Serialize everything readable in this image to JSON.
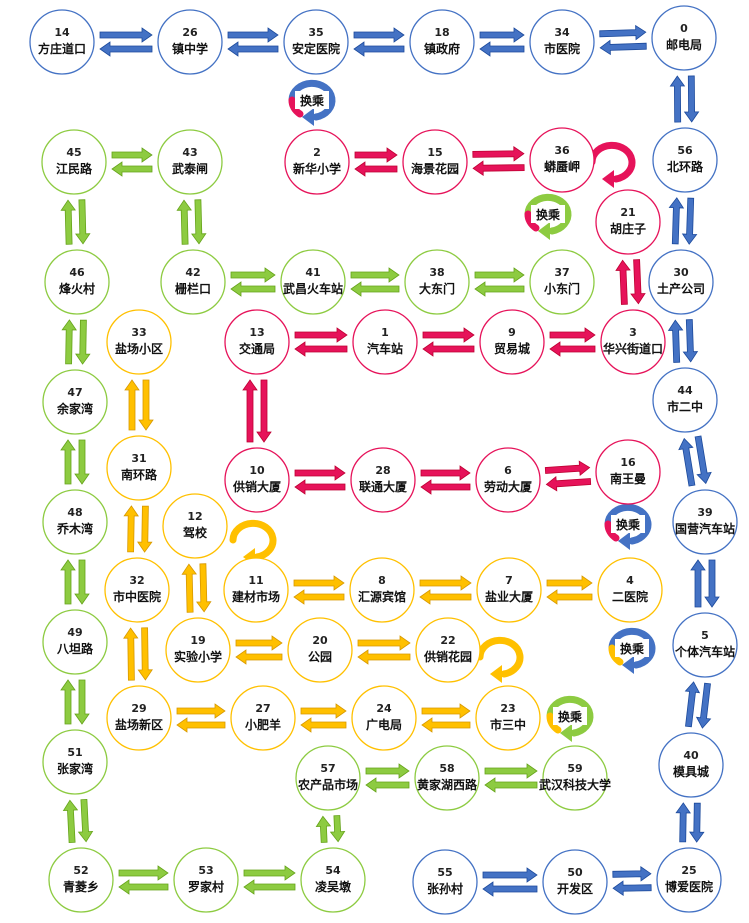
{
  "lines": {
    "blue": {
      "color": "#4472C4"
    },
    "red": {
      "color": "#E6135A"
    },
    "green": {
      "color": "#8DCB41"
    },
    "yellow": {
      "color": "#FFC000"
    }
  },
  "stations": [
    {
      "id": "s14",
      "num": "14",
      "name": "方庄道口",
      "line": "blue"
    },
    {
      "id": "s26",
      "num": "26",
      "name": "镇中学",
      "line": "blue"
    },
    {
      "id": "s35",
      "num": "35",
      "name": "安定医院",
      "line": "blue"
    },
    {
      "id": "s18",
      "num": "18",
      "name": "镇政府",
      "line": "blue"
    },
    {
      "id": "s34",
      "num": "34",
      "name": "市医院",
      "line": "blue"
    },
    {
      "id": "s0",
      "num": "0",
      "name": "邮电局",
      "line": "blue"
    },
    {
      "id": "s56",
      "num": "56",
      "name": "北环路",
      "line": "blue"
    },
    {
      "id": "s30",
      "num": "30",
      "name": "土产公司",
      "line": "blue"
    },
    {
      "id": "s44",
      "num": "44",
      "name": "市二中",
      "line": "blue"
    },
    {
      "id": "s39",
      "num": "39",
      "name": "国营汽车站",
      "line": "blue"
    },
    {
      "id": "s5",
      "num": "5",
      "name": "个体汽车站",
      "line": "blue"
    },
    {
      "id": "s40",
      "num": "40",
      "name": "模具城",
      "line": "blue"
    },
    {
      "id": "s25",
      "num": "25",
      "name": "博爱医院",
      "line": "blue"
    },
    {
      "id": "s50",
      "num": "50",
      "name": "开发区",
      "line": "blue"
    },
    {
      "id": "s55",
      "num": "55",
      "name": "张孙村",
      "line": "blue"
    },
    {
      "id": "s2",
      "num": "2",
      "name": "新华小学",
      "line": "red"
    },
    {
      "id": "s15",
      "num": "15",
      "name": "海景花园",
      "line": "red"
    },
    {
      "id": "s36",
      "num": "36",
      "name": "蟒蜃岬",
      "line": "red"
    },
    {
      "id": "s21",
      "num": "21",
      "name": "胡庄子",
      "line": "red"
    },
    {
      "id": "s3",
      "num": "3",
      "name": "华兴街道口",
      "line": "red"
    },
    {
      "id": "s9",
      "num": "9",
      "name": "贸易城",
      "line": "red"
    },
    {
      "id": "s1",
      "num": "1",
      "name": "汽车站",
      "line": "red"
    },
    {
      "id": "s13",
      "num": "13",
      "name": "交通局",
      "line": "red"
    },
    {
      "id": "s10",
      "num": "10",
      "name": "供销大厦",
      "line": "red"
    },
    {
      "id": "s28",
      "num": "28",
      "name": "联通大厦",
      "line": "red"
    },
    {
      "id": "s6",
      "num": "6",
      "name": "劳动大厦",
      "line": "red"
    },
    {
      "id": "s16",
      "num": "16",
      "name": "南王曼",
      "line": "red"
    },
    {
      "id": "s45",
      "num": "45",
      "name": "江民路",
      "line": "green"
    },
    {
      "id": "s43",
      "num": "43",
      "name": "武泰闸",
      "line": "green"
    },
    {
      "id": "s42",
      "num": "42",
      "name": "栅栏口",
      "line": "green"
    },
    {
      "id": "s41",
      "num": "41",
      "name": "武昌火车站",
      "line": "green"
    },
    {
      "id": "s38",
      "num": "38",
      "name": "大东门",
      "line": "green"
    },
    {
      "id": "s37",
      "num": "37",
      "name": "小东门",
      "line": "green"
    },
    {
      "id": "s46",
      "num": "46",
      "name": "烽火村",
      "line": "green"
    },
    {
      "id": "s47",
      "num": "47",
      "name": "余家湾",
      "line": "green"
    },
    {
      "id": "s48",
      "num": "48",
      "name": "乔木湾",
      "line": "green"
    },
    {
      "id": "s49",
      "num": "49",
      "name": "八坦路",
      "line": "green"
    },
    {
      "id": "s51",
      "num": "51",
      "name": "张家湾",
      "line": "green"
    },
    {
      "id": "s52",
      "num": "52",
      "name": "青菱乡",
      "line": "green"
    },
    {
      "id": "s53",
      "num": "53",
      "name": "罗家村",
      "line": "green"
    },
    {
      "id": "s54",
      "num": "54",
      "name": "凌吴墩",
      "line": "green"
    },
    {
      "id": "s57",
      "num": "57",
      "name": "农产品市场",
      "line": "green"
    },
    {
      "id": "s58",
      "num": "58",
      "name": "黄家湖西路",
      "line": "green"
    },
    {
      "id": "s59",
      "num": "59",
      "name": "武汉科技大学",
      "line": "green"
    },
    {
      "id": "s33",
      "num": "33",
      "name": "盐场小区",
      "line": "yellow"
    },
    {
      "id": "s31",
      "num": "31",
      "name": "南环路",
      "line": "yellow"
    },
    {
      "id": "s32",
      "num": "32",
      "name": "市中医院",
      "line": "yellow"
    },
    {
      "id": "s29",
      "num": "29",
      "name": "盐场新区",
      "line": "yellow"
    },
    {
      "id": "s12",
      "num": "12",
      "name": "驾校",
      "line": "yellow"
    },
    {
      "id": "s11",
      "num": "11",
      "name": "建材市场",
      "line": "yellow"
    },
    {
      "id": "s8",
      "num": "8",
      "name": "汇源宾馆",
      "line": "yellow"
    },
    {
      "id": "s7",
      "num": "7",
      "name": "盐业大厦",
      "line": "yellow"
    },
    {
      "id": "s4",
      "num": "4",
      "name": "二医院",
      "line": "yellow"
    },
    {
      "id": "s19",
      "num": "19",
      "name": "实验小学",
      "line": "yellow"
    },
    {
      "id": "s20",
      "num": "20",
      "name": "公园",
      "line": "yellow"
    },
    {
      "id": "s22",
      "num": "22",
      "name": "供销花园",
      "line": "yellow"
    },
    {
      "id": "s27",
      "num": "27",
      "name": "小肥羊",
      "line": "yellow"
    },
    {
      "id": "s24",
      "num": "24",
      "name": "广电局",
      "line": "yellow"
    },
    {
      "id": "s23",
      "num": "23",
      "name": "市三中",
      "line": "yellow"
    }
  ],
  "connections": [
    {
      "a": "s14",
      "b": "s26"
    },
    {
      "a": "s26",
      "b": "s35"
    },
    {
      "a": "s35",
      "b": "s18"
    },
    {
      "a": "s18",
      "b": "s34"
    },
    {
      "a": "s34",
      "b": "s0"
    },
    {
      "a": "s0",
      "b": "s56"
    },
    {
      "a": "s56",
      "b": "s30"
    },
    {
      "a": "s30",
      "b": "s44"
    },
    {
      "a": "s44",
      "b": "s39"
    },
    {
      "a": "s39",
      "b": "s5"
    },
    {
      "a": "s5",
      "b": "s40"
    },
    {
      "a": "s40",
      "b": "s25"
    },
    {
      "a": "s25",
      "b": "s50"
    },
    {
      "a": "s50",
      "b": "s55"
    },
    {
      "a": "s2",
      "b": "s15"
    },
    {
      "a": "s15",
      "b": "s36"
    },
    {
      "a": "s21",
      "b": "s3"
    },
    {
      "a": "s3",
      "b": "s9"
    },
    {
      "a": "s9",
      "b": "s1"
    },
    {
      "a": "s1",
      "b": "s13"
    },
    {
      "a": "s13",
      "b": "s10"
    },
    {
      "a": "s10",
      "b": "s28"
    },
    {
      "a": "s28",
      "b": "s6"
    },
    {
      "a": "s6",
      "b": "s16"
    },
    {
      "a": "s45",
      "b": "s43"
    },
    {
      "a": "s43",
      "b": "s42"
    },
    {
      "a": "s42",
      "b": "s41"
    },
    {
      "a": "s41",
      "b": "s38"
    },
    {
      "a": "s38",
      "b": "s37"
    },
    {
      "a": "s45",
      "b": "s46"
    },
    {
      "a": "s46",
      "b": "s47"
    },
    {
      "a": "s47",
      "b": "s48"
    },
    {
      "a": "s48",
      "b": "s49"
    },
    {
      "a": "s49",
      "b": "s51"
    },
    {
      "a": "s51",
      "b": "s52"
    },
    {
      "a": "s52",
      "b": "s53"
    },
    {
      "a": "s53",
      "b": "s54"
    },
    {
      "a": "s54",
      "b": "s57"
    },
    {
      "a": "s57",
      "b": "s58"
    },
    {
      "a": "s58",
      "b": "s59"
    },
    {
      "a": "s33",
      "b": "s31"
    },
    {
      "a": "s31",
      "b": "s32"
    },
    {
      "a": "s32",
      "b": "s29"
    },
    {
      "a": "s29",
      "b": "s27"
    },
    {
      "a": "s27",
      "b": "s24"
    },
    {
      "a": "s24",
      "b": "s23"
    },
    {
      "a": "s12",
      "b": "s19"
    },
    {
      "a": "s19",
      "b": "s20"
    },
    {
      "a": "s20",
      "b": "s22"
    },
    {
      "a": "s11",
      "b": "s8"
    },
    {
      "a": "s8",
      "b": "s7"
    },
    {
      "a": "s7",
      "b": "s4"
    }
  ],
  "transfers": [
    {
      "id": "t35",
      "label": "换乘",
      "color": "#4472C4",
      "color2": "#E6135A"
    },
    {
      "id": "t36",
      "label": "",
      "color": "#E6135A"
    },
    {
      "id": "t37",
      "label": "换乘",
      "color": "#8DCB41",
      "color2": "#E6135A"
    },
    {
      "id": "t12",
      "label": "",
      "color": "#FFC000"
    },
    {
      "id": "t39",
      "label": "换乘",
      "color": "#4472C4",
      "color2": "#E6135A"
    },
    {
      "id": "t5",
      "label": "换乘",
      "color": "#4472C4",
      "color2": "#FFC000"
    },
    {
      "id": "t22",
      "label": "",
      "color": "#FFC000"
    },
    {
      "id": "t23",
      "label": "换乘",
      "color": "#8DCB41",
      "color2": "#FFC000"
    }
  ]
}
